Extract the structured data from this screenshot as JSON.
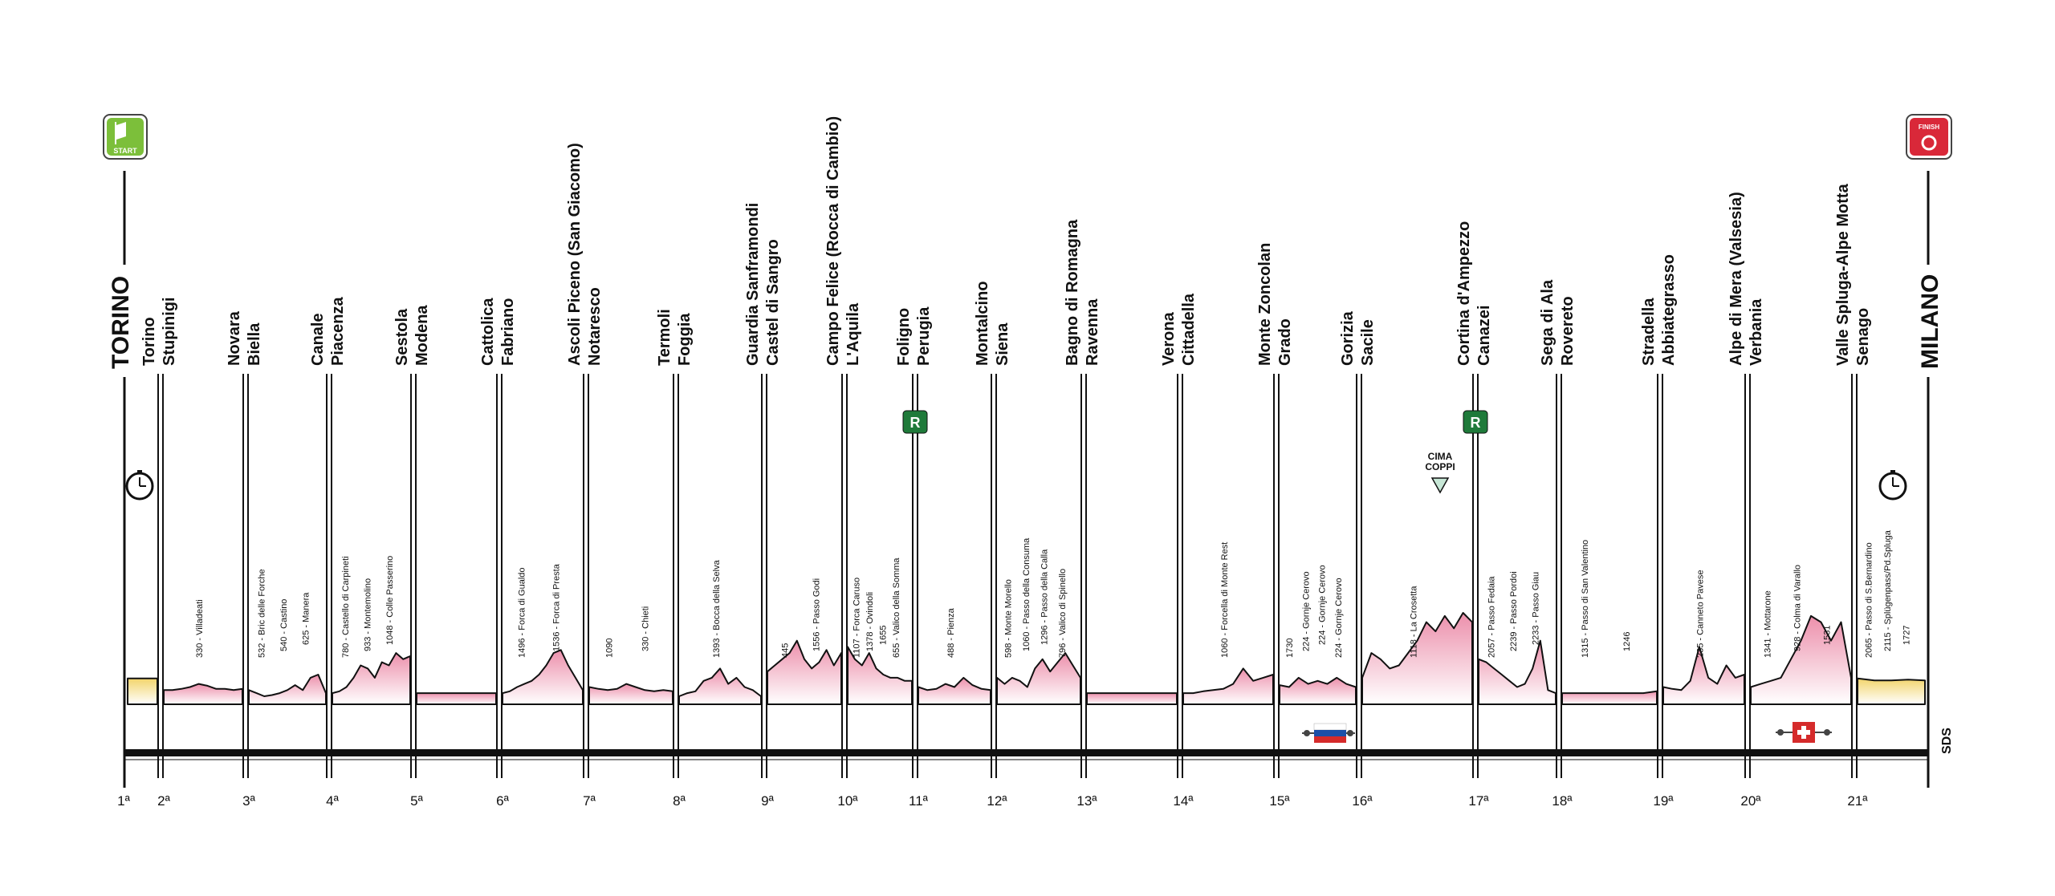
{
  "start_city": "TORINO",
  "finish_city": "MILANO",
  "start_badge": "START",
  "finish_badge": "FINISH",
  "credit": "SDS",
  "cima_coppi": "CIMA COPPI",
  "rest_day_letter": "R",
  "stages": [
    {
      "number": "1ª",
      "start": "",
      "finish": "",
      "tt": true,
      "profile": "yellow"
    },
    {
      "number": "2ª",
      "start": "Torino",
      "finish": "Stupinigi",
      "climbs": [
        "330 - Villadeati"
      ]
    },
    {
      "number": "3ª",
      "start": "Novara",
      "finish": "Biella",
      "climbs": [
        "532 - Bric delle Forche",
        "540 - Castino",
        "625 - Manera"
      ]
    },
    {
      "number": "4ª",
      "start": "Canale",
      "finish": "Piacenza",
      "climbs": [
        "780 - Castello di Carpineti",
        "933 - Montemolino",
        "1048 - Colle Passerino"
      ]
    },
    {
      "number": "5ª",
      "start": "Sestola",
      "finish": "Modena",
      "climbs": []
    },
    {
      "number": "6ª",
      "start": "Cattolica",
      "finish": "Fabriano",
      "climbs": [
        "1496 - Forca di Gualdo",
        "1536 - Forca di Presta"
      ]
    },
    {
      "number": "7ª",
      "start": "Ascoli Piceno (San Giacomo)",
      "finish": "Notaresco",
      "climbs": [
        "1090",
        "330 - Chieti"
      ]
    },
    {
      "number": "8ª",
      "start": "Termoli",
      "finish": "Foggia",
      "climbs": [
        "1393 - Bocca della Selva"
      ]
    },
    {
      "number": "9ª",
      "start": "Guardia Sanframondi",
      "finish": "Castel di Sangro",
      "climbs": [
        "445",
        "1556 - Passo Godi"
      ]
    },
    {
      "number": "10ª",
      "start": "Campo Felice (Rocca di Cambio)",
      "finish": "L'Aquila",
      "climbs": [
        "1107 - Forca Caruso",
        "1378 - Ovindoli",
        "1655",
        "655 - Valico della Somma"
      ]
    },
    {
      "number": "11ª",
      "start": "Foligno",
      "finish": "Perugia",
      "climbs": [
        "488 - Pienza"
      ],
      "rest_day": true
    },
    {
      "number": "12ª",
      "start": "Montalcino",
      "finish": "Siena",
      "climbs": [
        "598 - Monte Morello",
        "1060 - Passo della Consuma",
        "1296 - Passo della Calla",
        "796 - Valico di Spinello"
      ]
    },
    {
      "number": "13ª",
      "start": "Bagno di Romagna",
      "finish": "Ravenna",
      "climbs": []
    },
    {
      "number": "14ª",
      "start": "Verona",
      "finish": "Cittadella",
      "climbs": [
        "1060 - Forcella di Monte Rest"
      ]
    },
    {
      "number": "15ª",
      "start": "Monte Zoncolan",
      "finish": "Grado",
      "climbs": [
        "1730",
        "224 - Gornje Cerovo",
        "224 - Gornje Cerovo",
        "224 - Gornje Cerovo"
      ]
    },
    {
      "number": "16ª",
      "start": "Gorizia",
      "finish": "Sacile",
      "climbs": [
        "1118 - La Crosetta"
      ]
    },
    {
      "number": "17ª",
      "start": "Cortina d'Ampezzo",
      "finish": "Canazei",
      "climbs": [
        "2057 - Passo Fedaia",
        "2239 - Passo Pordoi",
        "2233 - Passo Giau"
      ],
      "rest_day": true
    },
    {
      "number": "18ª",
      "start": "Sega di Ala",
      "finish": "Rovereto",
      "climbs": [
        "1315 - Passo di San Valentino",
        "1246"
      ]
    },
    {
      "number": "19ª",
      "start": "Stradella",
      "finish": "Abbiategrasso",
      "climbs": [
        "235 - Canneto Pavese"
      ]
    },
    {
      "number": "20ª",
      "start": "Alpe di Mera (Valsesia)",
      "finish": "Verbania",
      "climbs": [
        "1341 - Mottarone",
        "928 - Colma di Varallo",
        "1531"
      ]
    },
    {
      "number": "21ª",
      "start": "Valle Spluga-Alpe Motta",
      "finish": "Senago",
      "climbs": [
        "2065 - Passo di S.Bernardino",
        "2115 - Splügenpass/Pd.Spluga",
        "1727"
      ],
      "tt": true,
      "profile": "yellow"
    }
  ]
}
